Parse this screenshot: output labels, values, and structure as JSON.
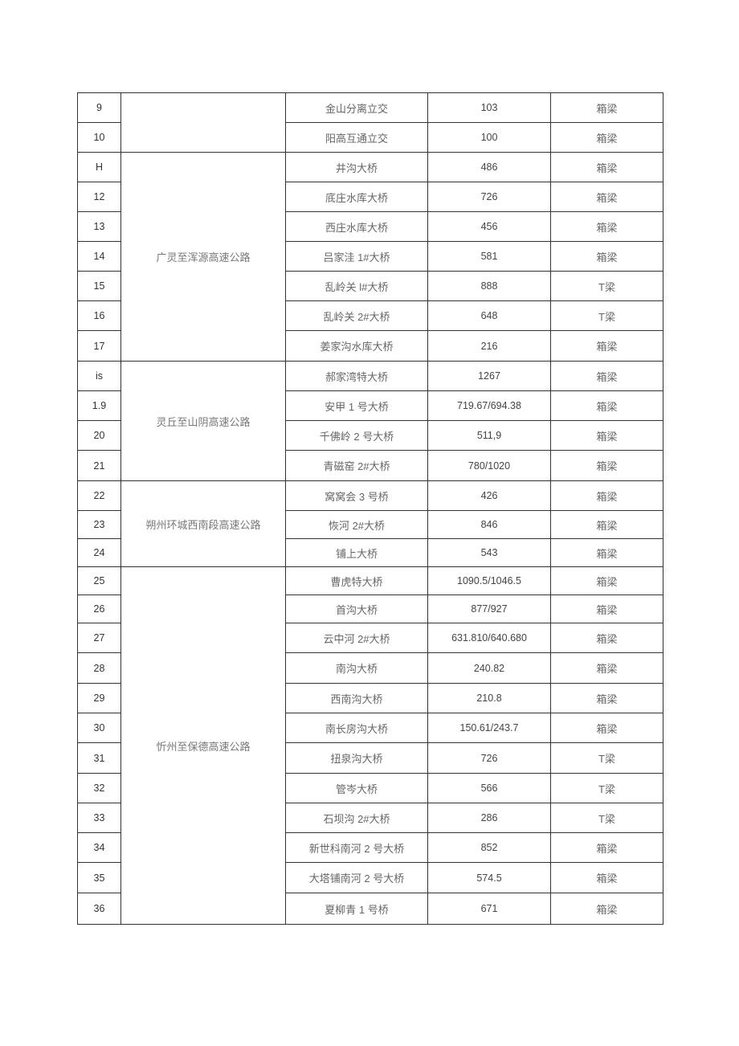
{
  "groups": [
    {
      "road": "",
      "rows": [
        {
          "no": "9",
          "name": "金山分离立交",
          "length": "103",
          "type": "箱梁"
        },
        {
          "no": "10",
          "name": "阳高互通立交",
          "length": "100",
          "type": "箱梁"
        }
      ]
    },
    {
      "road": "广灵至浑源高速公路",
      "rows": [
        {
          "no": "H",
          "name": "井沟大桥",
          "length": "486",
          "type": "箱梁"
        },
        {
          "no": "12",
          "name": "底庄水库大桥",
          "length": "726",
          "type": "箱梁"
        },
        {
          "no": "13",
          "name": "西庄水库大桥",
          "length": "456",
          "type": "箱梁"
        },
        {
          "no": "14",
          "name": "吕家洼 1#大桥",
          "length": "581",
          "type": "箱梁"
        },
        {
          "no": "15",
          "name": "乱岭关 l#大桥",
          "length": "888",
          "type": "T梁"
        },
        {
          "no": "16",
          "name": "乱岭关 2#大桥",
          "length": "648",
          "type": "T梁"
        },
        {
          "no": "17",
          "name": "姜家沟水库大桥",
          "length": "216",
          "type": "箱梁"
        }
      ]
    },
    {
      "road": "灵丘至山阴高速公路",
      "rows": [
        {
          "no": "is",
          "name": "郝家湾特大桥",
          "length": "1267",
          "type": "箱梁"
        },
        {
          "no": "1.9",
          "name": "安甲 1 号大桥",
          "length": "719.67/694.38",
          "type": "箱梁"
        },
        {
          "no": "20",
          "name": "千佛岭 2 号大桥",
          "length": "511,9",
          "type": "箱梁"
        },
        {
          "no": "21",
          "name": "青磁窑 2#大桥",
          "length": "780/1020",
          "type": "箱梁"
        }
      ]
    },
    {
      "road": "朔州环城西南段高速公路",
      "rows": [
        {
          "no": "22",
          "name": "窝窝会 3 号桥",
          "length": "426",
          "type": "箱梁"
        },
        {
          "no": "23",
          "name": "恢河 2#大桥",
          "length": "846",
          "type": "箱梁"
        },
        {
          "no": "24",
          "name": "铺上大桥",
          "length": "543",
          "type": "箱梁"
        }
      ]
    },
    {
      "road": "忻州至保德高速公路",
      "rows": [
        {
          "no": "25",
          "name": "曹虎特大桥",
          "length": "1090.5/1046.5",
          "type": "箱梁"
        },
        {
          "no": "26",
          "name": "首沟大桥",
          "length": "877/927",
          "type": "箱梁"
        },
        {
          "no": "27",
          "name": "云中河 2#大桥",
          "length": "631.810/640.680",
          "type": "箱梁"
        },
        {
          "no": "28",
          "name": "南沟大桥",
          "length": "240.82",
          "type": "箱梁"
        },
        {
          "no": "29",
          "name": "西南沟大桥",
          "length": "210.8",
          "type": "箱梁"
        },
        {
          "no": "30",
          "name": "南长房沟大桥",
          "length": "150.61/243.7",
          "type": "箱梁"
        },
        {
          "no": "31",
          "name": "扭泉沟大桥",
          "length": "726",
          "type": "T梁"
        },
        {
          "no": "32",
          "name": "管岑大桥",
          "length": "566",
          "type": "T梁"
        },
        {
          "no": "33",
          "name": "石坝沟 2#大桥",
          "length": "286",
          "type": "T梁"
        },
        {
          "no": "34",
          "name": "新世科南河 2 号大桥",
          "length": "852",
          "type": "箱梁"
        },
        {
          "no": "35",
          "name": "大塔铺南河 2 号大桥",
          "length": "574.5",
          "type": "箱梁"
        },
        {
          "no": "36",
          "name": "夏柳青 1 号桥",
          "length": "671",
          "type": "箱梁"
        }
      ]
    }
  ]
}
